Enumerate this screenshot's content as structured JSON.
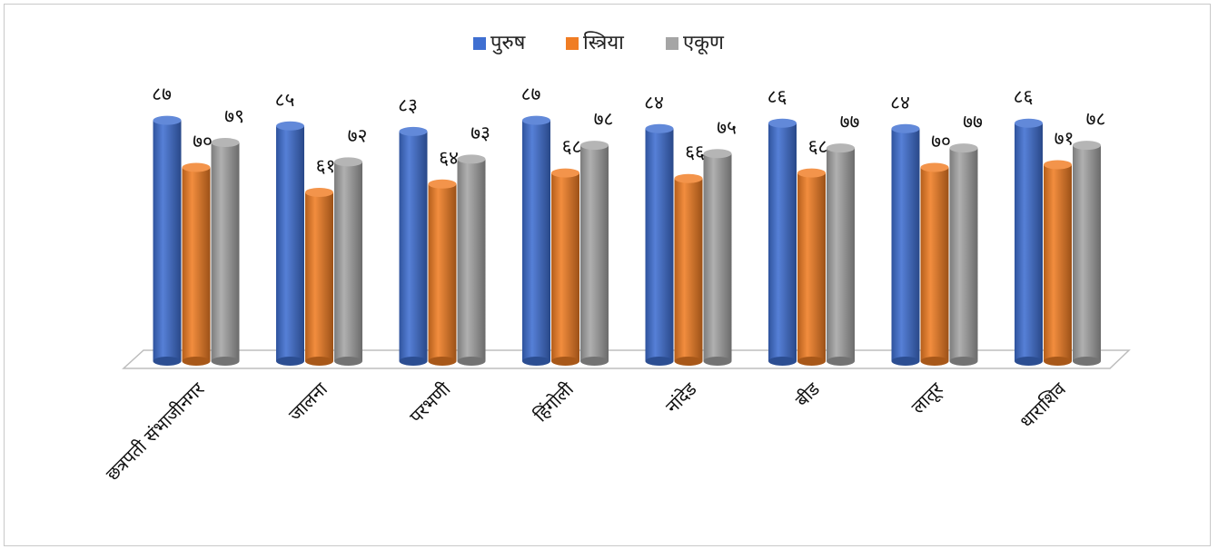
{
  "chart_data": {
    "type": "bar",
    "title": "",
    "xlabel": "",
    "ylabel": "",
    "ylim": [
      0,
      100
    ],
    "legend_position": "top-center",
    "grid": false,
    "categories": [
      "छत्रपती संभाजीनगर",
      "जालना",
      "परभणी",
      "हिंगोली",
      "नांदेड",
      "बीड",
      "लातूर",
      "धाराशिव"
    ],
    "series": [
      {
        "name": "पुरुष",
        "color": "#3f6fd1",
        "values": [
          87,
          85,
          83,
          87,
          84,
          86,
          84,
          86
        ],
        "labels": [
          "८७",
          "८५",
          "८३",
          "८७",
          "८४",
          "८६",
          "८४",
          "८६"
        ]
      },
      {
        "name": "स्त्रिया",
        "color": "#f07d24",
        "values": [
          70,
          61,
          64,
          68,
          66,
          68,
          70,
          71
        ],
        "labels": [
          "७०",
          "६१",
          "६४",
          "६८",
          "६६",
          "६८",
          "७०",
          "७१"
        ]
      },
      {
        "name": "एकूण",
        "color": "#a5a5a5",
        "values": [
          79,
          72,
          73,
          78,
          75,
          77,
          77,
          78
        ],
        "labels": [
          "७९",
          "७२",
          "७३",
          "७८",
          "७५",
          "७७",
          "७७",
          "७८"
        ]
      }
    ]
  }
}
